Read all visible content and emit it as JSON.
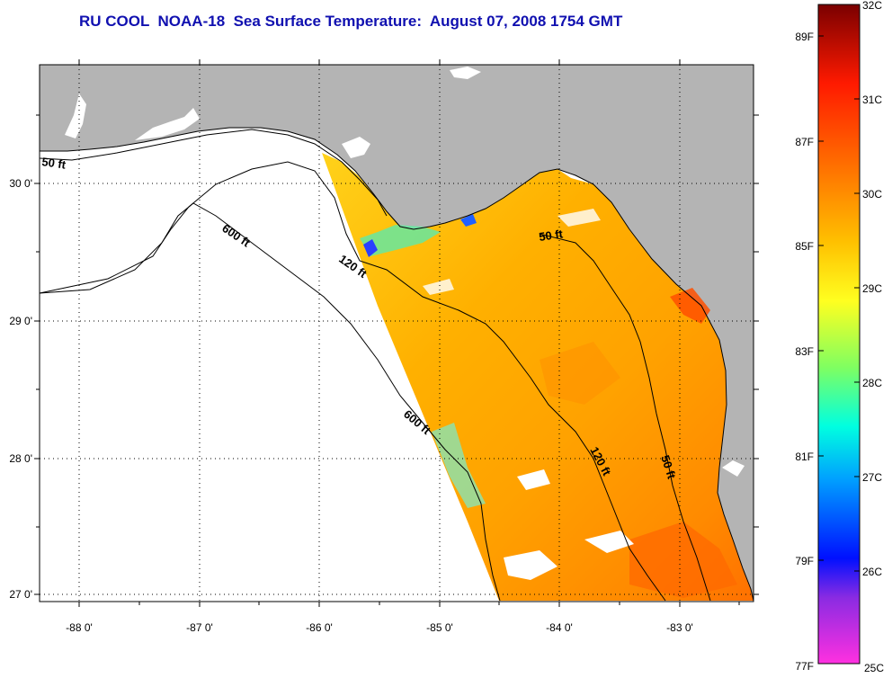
{
  "title": "RU COOL  NOAA-18  Sea Surface Temperature:  August 07, 2008 1754 GMT",
  "map": {
    "lon_labels": [
      "-88 0'",
      "-87 0'",
      "-86 0'",
      "-85 0'",
      "-84 0'",
      "-83 0'"
    ],
    "lat_labels": [
      "30 0'",
      "29 0'",
      "28 0'",
      "27 0'"
    ],
    "contour_labels": {
      "c50_west": "50 ft",
      "c50_east": "50 ft",
      "c50_south": "50 ft",
      "c120_north": "120 ft",
      "c120_south": "120 ft",
      "c600_north": "600 ft",
      "c600_south": "600 ft"
    },
    "colors": {
      "land": "#b4b4b4",
      "water_nodata": "#ffffff",
      "frame": "#000000"
    }
  },
  "colorbar": {
    "fahrenheit_labels": [
      "89F",
      "87F",
      "85F",
      "83F",
      "81F",
      "79F",
      "77F"
    ],
    "celsius_labels": [
      "32C",
      "31C",
      "30C",
      "29C",
      "28C",
      "27C",
      "26C",
      "25C"
    ],
    "gradient_colors": [
      "#8b0000",
      "#ff0000",
      "#ff6a00",
      "#ffb000",
      "#ffff00",
      "#a0ff40",
      "#00ffc0",
      "#00e0ff",
      "#0070ff",
      "#0000ff",
      "#8a2be2",
      "#ff30e0"
    ]
  }
}
